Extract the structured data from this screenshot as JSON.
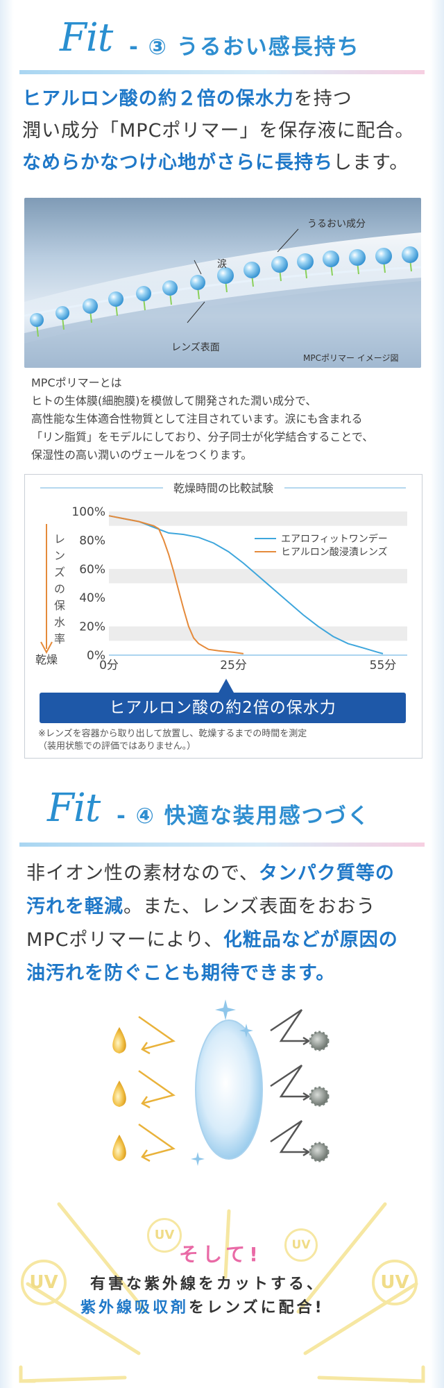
{
  "section3": {
    "fit_word": "Fit",
    "dash": "-",
    "number": "③",
    "title": "うるおい感長持ち",
    "lead": {
      "l1_em": "ヒアルロン酸の約２倍の保水力",
      "l1_rest": "を持つ",
      "l2": "潤い成分「MPCポリマー」を保存液に配合。",
      "l3_em": "なめらかなつけ心地がさらに長持ち",
      "l3_rest": "します。"
    },
    "illustration": {
      "label_moisture": "うるおい成分",
      "label_tears": "涙",
      "label_lens": "レンズ表面",
      "caption": "MPCポリマー イメージ図"
    },
    "description": {
      "title": "MPCポリマーとは",
      "lines": [
        "ヒトの生体膜(細胞膜)を模倣して開発された潤い成分で、",
        "高性能な生体適合性物質として注目されています。涙にも含まれる",
        "「リン脂質」をモデルにしており、分子同士が化学結合することで、",
        "保湿性の高い潤いのヴェールをつくります。"
      ]
    },
    "banner": "ヒアルロン酸の約2倍の保水力",
    "notes": [
      "※レンズを容器から取り出して放置し、乾燥するまでの時間を測定",
      "（装用状態での評価ではありません。）"
    ]
  },
  "chart_data": {
    "type": "line",
    "title": "乾燥時間の比較試験",
    "ylabel": "レンズの保水率",
    "y_bottom_label": "乾燥",
    "xlim": [
      0,
      55
    ],
    "ylim": [
      0,
      100
    ],
    "x_ticks": [
      "0分",
      "25分",
      "55分"
    ],
    "x_tick_values": [
      0,
      25,
      55
    ],
    "y_ticks": [
      "100%",
      "80%",
      "60%",
      "40%",
      "20%",
      "0%"
    ],
    "y_tick_values": [
      100,
      80,
      60,
      40,
      20,
      0
    ],
    "grid": "horizontal bands",
    "legend": "right",
    "series": [
      {
        "name": "エアロフィットワンデー",
        "color": "#3ea6dc",
        "x": [
          0,
          3,
          6,
          9,
          12,
          15,
          18,
          21,
          24,
          27,
          30,
          33,
          36,
          39,
          42,
          45,
          48,
          51,
          54,
          55
        ],
        "y": [
          97,
          95,
          93,
          89,
          85,
          84,
          82,
          78,
          72,
          64,
          55,
          46,
          37,
          28,
          20,
          13,
          8,
          5,
          2,
          1
        ]
      },
      {
        "name": "ヒアルロン酸浸漬レンズ",
        "color": "#e58a3a",
        "x": [
          0,
          3,
          6,
          9,
          10,
          11,
          12,
          13,
          14,
          15,
          16,
          17,
          18,
          19,
          20,
          22,
          25,
          27
        ],
        "y": [
          97,
          95,
          93,
          90,
          88,
          80,
          70,
          58,
          45,
          32,
          20,
          12,
          8,
          6,
          4,
          3,
          2,
          1
        ]
      }
    ]
  },
  "section4": {
    "fit_word": "Fit",
    "dash": "-",
    "number": "④",
    "title": "快適な装用感つづく",
    "lead": {
      "l1_pre": "非イオン性の素材なので、",
      "l1_em": "タンパク質等の",
      "l2_em": "汚れを軽減",
      "l2_rest": "。また、レンズ表面をおおう",
      "l3_pre": "MPCポリマーにより、",
      "l3_em": "化粧品などが原因の",
      "l4_em": "油汚れを防ぐことも期待できます。"
    }
  },
  "uv": {
    "badge": "UV",
    "soshite": "そして!",
    "l1": "有害な紫外線をカットする、",
    "l2_em": "紫外線吸収剤",
    "l2_rest": "をレンズに配合!"
  },
  "colors": {
    "accent_blue": "#2e8ed0",
    "banner_blue": "#1e58a8",
    "pink": "#e96aa6",
    "gold": "#e9b23a"
  }
}
